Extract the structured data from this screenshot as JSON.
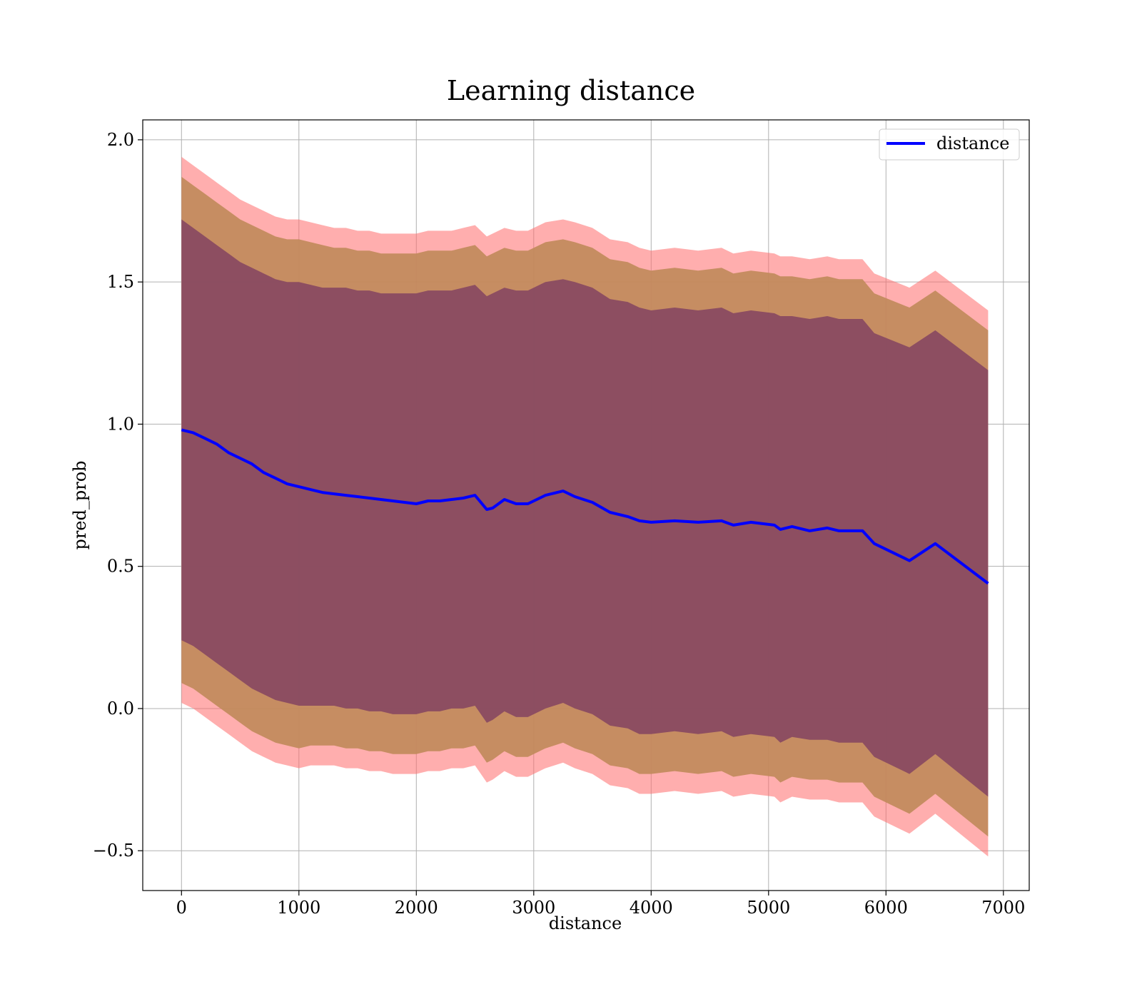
{
  "chart_data": {
    "type": "line",
    "title": "Learning distance",
    "xlabel": "distance",
    "ylabel": "pred_prob",
    "xlim": [
      -330,
      7220
    ],
    "ylim": [
      -0.64,
      2.07
    ],
    "xticks": [
      0,
      1000,
      2000,
      3000,
      4000,
      5000,
      6000,
      7000
    ],
    "xtick_labels": [
      "0",
      "1000",
      "2000",
      "3000",
      "4000",
      "5000",
      "6000",
      "7000"
    ],
    "yticks": [
      -0.5,
      0.0,
      0.5,
      1.0,
      1.5,
      2.0
    ],
    "ytick_labels": [
      "−0.5",
      "0.0",
      "0.5",
      "1.0",
      "1.5",
      "2.0"
    ],
    "grid": true,
    "legend": {
      "position": "top-right",
      "entries": [
        {
          "label": "distance",
          "color": "#0000ff"
        }
      ]
    },
    "colors": {
      "line": "#0000ff",
      "band_outer": "#ff6b6b",
      "band_middle": "#c08a5a",
      "band_inner": "#7a3a62"
    },
    "series": [
      {
        "name": "distance",
        "x": [
          0,
          100,
          200,
          300,
          400,
          500,
          600,
          700,
          800,
          900,
          1000,
          1100,
          1200,
          1300,
          1400,
          1500,
          1600,
          1700,
          1800,
          1900,
          2000,
          2100,
          2200,
          2300,
          2400,
          2500,
          2600,
          2650,
          2750,
          2850,
          2950,
          3100,
          3250,
          3350,
          3500,
          3650,
          3800,
          3900,
          4000,
          4200,
          4400,
          4600,
          4700,
          4850,
          5050,
          5100,
          5200,
          5350,
          5500,
          5600,
          5800,
          5900,
          6200,
          6420,
          6870
        ],
        "y": [
          0.98,
          0.97,
          0.95,
          0.93,
          0.9,
          0.88,
          0.86,
          0.83,
          0.81,
          0.79,
          0.78,
          0.77,
          0.76,
          0.755,
          0.75,
          0.745,
          0.74,
          0.735,
          0.73,
          0.725,
          0.72,
          0.73,
          0.73,
          0.735,
          0.74,
          0.75,
          0.7,
          0.705,
          0.735,
          0.72,
          0.72,
          0.75,
          0.765,
          0.745,
          0.725,
          0.69,
          0.675,
          0.66,
          0.655,
          0.66,
          0.655,
          0.66,
          0.645,
          0.655,
          0.645,
          0.63,
          0.64,
          0.625,
          0.635,
          0.625,
          0.625,
          0.58,
          0.52,
          0.58,
          0.44
        ]
      }
    ],
    "bands": [
      {
        "upper": [
          1.94,
          1.91,
          1.88,
          1.85,
          1.82,
          1.79,
          1.77,
          1.75,
          1.73,
          1.72,
          1.72,
          1.71,
          1.7,
          1.69,
          1.69,
          1.68,
          1.68,
          1.67,
          1.67,
          1.67,
          1.67,
          1.68,
          1.68,
          1.68,
          1.69,
          1.7,
          1.66,
          1.67,
          1.69,
          1.68,
          1.68,
          1.71,
          1.72,
          1.71,
          1.69,
          1.65,
          1.64,
          1.62,
          1.61,
          1.62,
          1.61,
          1.62,
          1.6,
          1.61,
          1.6,
          1.59,
          1.59,
          1.58,
          1.59,
          1.58,
          1.58,
          1.53,
          1.48,
          1.54,
          1.4
        ],
        "lower": [
          0.02,
          0.0,
          -0.03,
          -0.06,
          -0.09,
          -0.12,
          -0.15,
          -0.17,
          -0.19,
          -0.2,
          -0.21,
          -0.2,
          -0.2,
          -0.2,
          -0.21,
          -0.21,
          -0.22,
          -0.22,
          -0.23,
          -0.23,
          -0.23,
          -0.22,
          -0.22,
          -0.21,
          -0.21,
          -0.2,
          -0.26,
          -0.25,
          -0.22,
          -0.24,
          -0.24,
          -0.21,
          -0.19,
          -0.21,
          -0.23,
          -0.27,
          -0.28,
          -0.3,
          -0.3,
          -0.29,
          -0.3,
          -0.29,
          -0.31,
          -0.3,
          -0.31,
          -0.33,
          -0.31,
          -0.32,
          -0.32,
          -0.33,
          -0.33,
          -0.38,
          -0.44,
          -0.37,
          -0.52
        ]
      },
      {
        "upper": [
          1.87,
          1.84,
          1.81,
          1.78,
          1.75,
          1.72,
          1.7,
          1.68,
          1.66,
          1.65,
          1.65,
          1.64,
          1.63,
          1.62,
          1.62,
          1.61,
          1.61,
          1.6,
          1.6,
          1.6,
          1.6,
          1.61,
          1.61,
          1.61,
          1.62,
          1.63,
          1.59,
          1.6,
          1.62,
          1.61,
          1.61,
          1.64,
          1.65,
          1.64,
          1.62,
          1.58,
          1.57,
          1.55,
          1.54,
          1.55,
          1.54,
          1.55,
          1.53,
          1.54,
          1.53,
          1.52,
          1.52,
          1.51,
          1.52,
          1.51,
          1.51,
          1.46,
          1.41,
          1.47,
          1.33
        ],
        "lower": [
          0.09,
          0.07,
          0.04,
          0.01,
          -0.02,
          -0.05,
          -0.08,
          -0.1,
          -0.12,
          -0.13,
          -0.14,
          -0.13,
          -0.13,
          -0.13,
          -0.14,
          -0.14,
          -0.15,
          -0.15,
          -0.16,
          -0.16,
          -0.16,
          -0.15,
          -0.15,
          -0.14,
          -0.14,
          -0.13,
          -0.19,
          -0.18,
          -0.15,
          -0.17,
          -0.17,
          -0.14,
          -0.12,
          -0.14,
          -0.16,
          -0.2,
          -0.21,
          -0.23,
          -0.23,
          -0.22,
          -0.23,
          -0.22,
          -0.24,
          -0.23,
          -0.24,
          -0.26,
          -0.24,
          -0.25,
          -0.25,
          -0.26,
          -0.26,
          -0.31,
          -0.37,
          -0.3,
          -0.45
        ]
      },
      {
        "upper": [
          1.72,
          1.69,
          1.66,
          1.63,
          1.6,
          1.57,
          1.55,
          1.53,
          1.51,
          1.5,
          1.5,
          1.49,
          1.48,
          1.48,
          1.48,
          1.47,
          1.47,
          1.46,
          1.46,
          1.46,
          1.46,
          1.47,
          1.47,
          1.47,
          1.48,
          1.49,
          1.45,
          1.46,
          1.48,
          1.47,
          1.47,
          1.5,
          1.51,
          1.5,
          1.48,
          1.44,
          1.43,
          1.41,
          1.4,
          1.41,
          1.4,
          1.41,
          1.39,
          1.4,
          1.39,
          1.38,
          1.38,
          1.37,
          1.38,
          1.37,
          1.37,
          1.32,
          1.27,
          1.33,
          1.19
        ],
        "lower": [
          0.24,
          0.22,
          0.19,
          0.16,
          0.13,
          0.1,
          0.07,
          0.05,
          0.03,
          0.02,
          0.01,
          0.01,
          0.01,
          0.01,
          0.0,
          0.0,
          -0.01,
          -0.01,
          -0.02,
          -0.02,
          -0.02,
          -0.01,
          -0.01,
          0.0,
          0.0,
          0.01,
          -0.05,
          -0.04,
          -0.01,
          -0.03,
          -0.03,
          0.0,
          0.02,
          0.0,
          -0.02,
          -0.06,
          -0.07,
          -0.09,
          -0.09,
          -0.08,
          -0.09,
          -0.08,
          -0.1,
          -0.09,
          -0.1,
          -0.12,
          -0.1,
          -0.11,
          -0.11,
          -0.12,
          -0.12,
          -0.17,
          -0.23,
          -0.16,
          -0.31
        ]
      }
    ]
  }
}
